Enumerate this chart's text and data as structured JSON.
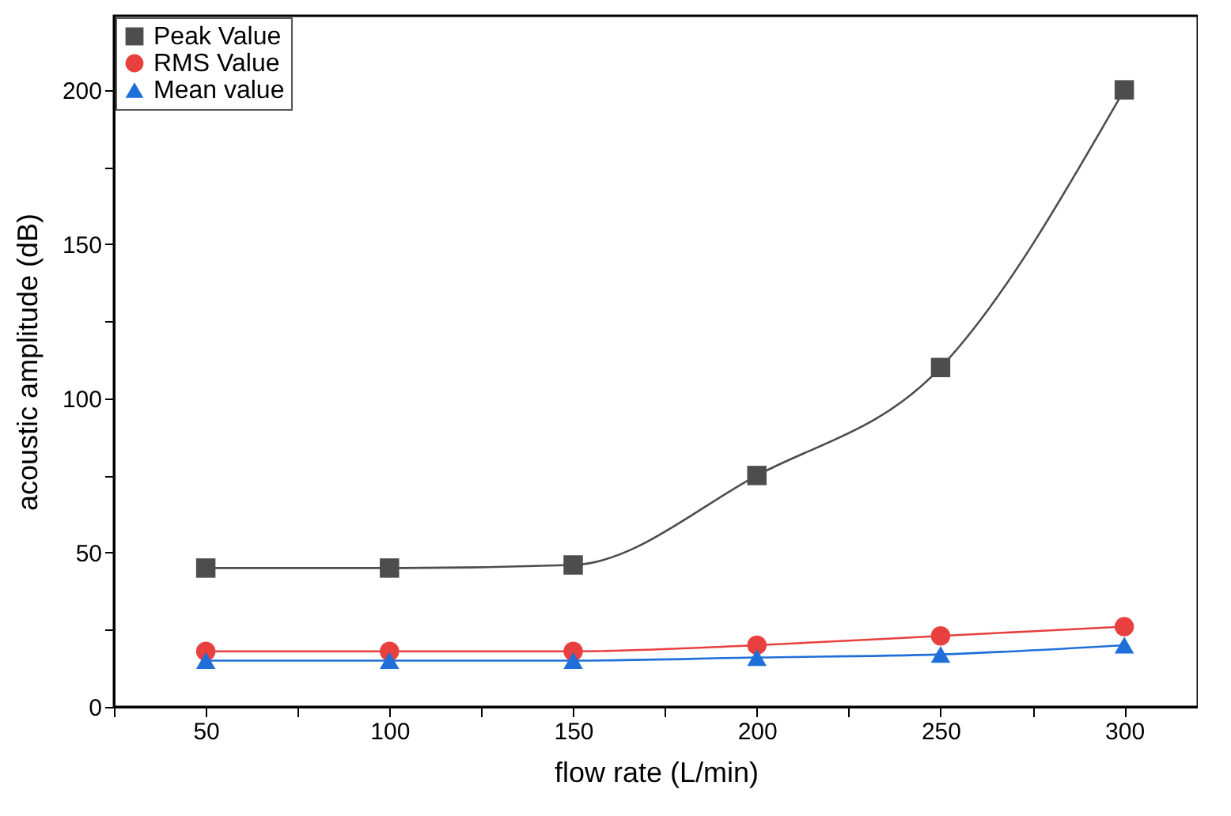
{
  "chart_data": {
    "type": "line",
    "xlabel": "flow rate (L/min)",
    "ylabel": "acoustic amplitude (dB)",
    "x": [
      50,
      100,
      150,
      200,
      250,
      300
    ],
    "series": [
      {
        "name": "Peak Value",
        "color": "#4d4d4d",
        "marker": "square",
        "values": [
          45,
          45,
          46,
          75,
          110,
          200
        ]
      },
      {
        "name": "RMS Value",
        "color": "#e83f3f",
        "marker": "circle",
        "values": [
          18,
          18,
          18,
          20,
          23,
          26
        ]
      },
      {
        "name": "Mean value",
        "color": "#1f6fd8",
        "marker": "triangle",
        "values": [
          15,
          15,
          15,
          16,
          17,
          20
        ]
      }
    ],
    "xlim": [
      25,
      320
    ],
    "xticks": [
      {
        "value": 25,
        "label": null
      },
      50,
      {
        "value": 75,
        "label": null
      },
      100,
      {
        "value": 125,
        "label": null
      },
      150,
      {
        "value": 175,
        "label": null
      },
      200,
      {
        "value": 225,
        "label": null
      },
      250,
      {
        "value": 275,
        "label": null
      },
      300
    ],
    "ylim": [
      0,
      224
    ],
    "yticks": [
      0,
      {
        "value": 25,
        "label": null
      },
      50,
      {
        "value": 75,
        "label": null
      },
      100,
      {
        "value": 125,
        "label": null
      },
      150,
      {
        "value": 175,
        "label": null
      },
      200
    ],
    "legend": "top left",
    "grid": false,
    "line_style": "solid"
  }
}
